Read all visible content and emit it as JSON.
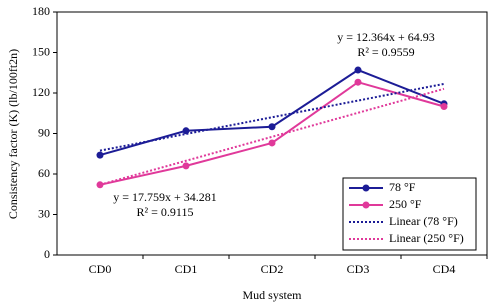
{
  "chart_data": {
    "type": "line",
    "x_label": "Mud system",
    "y_label": "Consistency factor (K)  (lb/100ft2n)",
    "categories": [
      "CD0",
      "CD1",
      "CD2",
      "CD3",
      "CD4"
    ],
    "series": [
      {
        "name": "78 °F",
        "color": "#1c1c96",
        "style": "solid",
        "marker": "circle",
        "values": [
          74,
          92,
          95,
          137,
          112
        ]
      },
      {
        "name": "250 °F",
        "color": "#e0399a",
        "style": "solid",
        "marker": "circle",
        "values": [
          52,
          66,
          83,
          128,
          110
        ]
      },
      {
        "name": "Linear (78 °F)",
        "color": "#1c1c96",
        "style": "dotted",
        "marker": "none",
        "values": [
          77.29,
          89.66,
          102.02,
          114.39,
          126.75
        ]
      },
      {
        "name": "Linear (250 °F)",
        "color": "#e0399a",
        "style": "dotted",
        "marker": "none",
        "values": [
          52.04,
          69.8,
          87.56,
          105.32,
          123.08
        ]
      }
    ],
    "annotations": [
      "y = 12.364x + 64.93",
      "R² = 0.9559",
      "y = 17.759x + 34.281",
      "R² = 0.9115"
    ],
    "ylim": [
      0,
      180
    ],
    "yticks": [
      0,
      30,
      60,
      90,
      120,
      150,
      180
    ],
    "legend": "lower right",
    "grid": false
  }
}
